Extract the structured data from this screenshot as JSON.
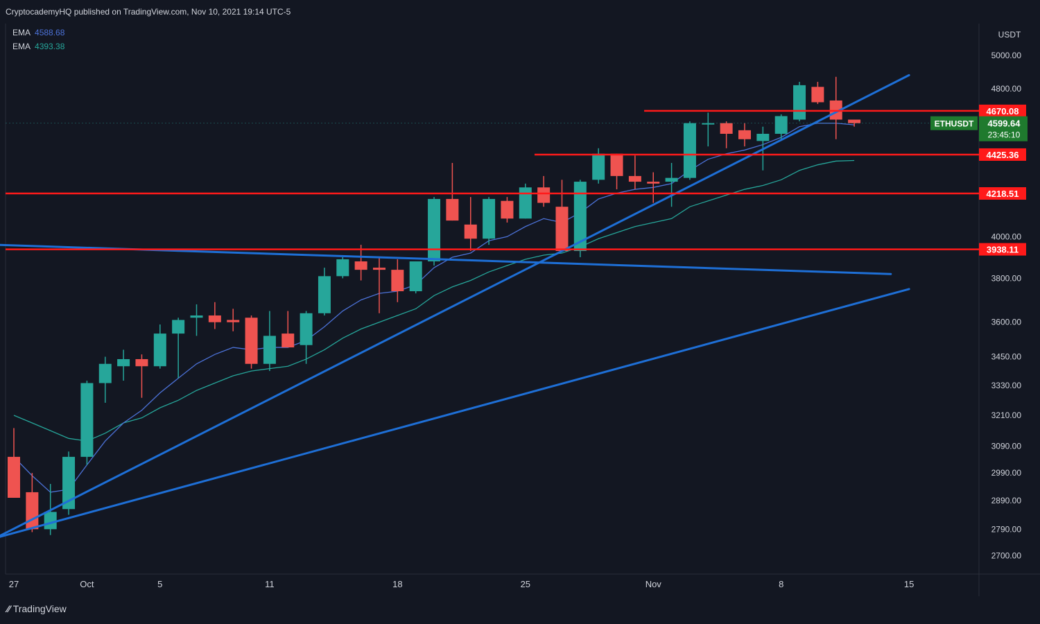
{
  "header": {
    "publisher": "CryptocademyHQ published on TradingView.com, Nov 10, 2021 19:14 UTC-5"
  },
  "footer": {
    "brand": "TradingView"
  },
  "legend": [
    {
      "label": "EMA",
      "value": "4588.68",
      "color": "#4c72d8"
    },
    {
      "label": "EMA",
      "value": "4393.38",
      "color": "#26a69a"
    }
  ],
  "chart_data": {
    "type": "candlestick",
    "symbol": "ETHUSDT",
    "currency_label": "USDT",
    "last_price": "4599.64",
    "countdown": "23:45:10",
    "colors": {
      "up": "#26a69a",
      "down": "#ef5350",
      "bg": "#131722",
      "trend": "#1e6fd6",
      "level": "#ff1a1a"
    },
    "y_scale": "log",
    "ylim": [
      2640,
      5200
    ],
    "y_ticks": [
      "5000.00",
      "4800.00",
      "4000.00",
      "3800.00",
      "3600.00",
      "3450.00",
      "3330.00",
      "3210.00",
      "3090.00",
      "2990.00",
      "2890.00",
      "2790.00",
      "2700.00"
    ],
    "x_ticks": [
      {
        "label": "27",
        "day": 0
      },
      {
        "label": "Oct",
        "day": 4
      },
      {
        "label": "5",
        "day": 8
      },
      {
        "label": "11",
        "day": 14
      },
      {
        "label": "18",
        "day": 21
      },
      {
        "label": "25",
        "day": 28
      },
      {
        "label": "Nov",
        "day": 35
      },
      {
        "label": "8",
        "day": 42
      },
      {
        "label": "15",
        "day": 49
      }
    ],
    "candles": [
      {
        "o": 3050,
        "h": 3160,
        "l": 2900,
        "c": 2900
      },
      {
        "o": 2920,
        "h": 2990,
        "l": 2780,
        "c": 2790
      },
      {
        "o": 2790,
        "h": 2950,
        "l": 2770,
        "c": 2850
      },
      {
        "o": 2860,
        "h": 3070,
        "l": 2840,
        "c": 3050
      },
      {
        "o": 3050,
        "h": 3350,
        "l": 3020,
        "c": 3340
      },
      {
        "o": 3340,
        "h": 3450,
        "l": 3260,
        "c": 3420
      },
      {
        "o": 3410,
        "h": 3480,
        "l": 3350,
        "c": 3440
      },
      {
        "o": 3440,
        "h": 3460,
        "l": 3280,
        "c": 3410
      },
      {
        "o": 3410,
        "h": 3590,
        "l": 3400,
        "c": 3550
      },
      {
        "o": 3550,
        "h": 3620,
        "l": 3360,
        "c": 3610
      },
      {
        "o": 3620,
        "h": 3680,
        "l": 3540,
        "c": 3630
      },
      {
        "o": 3630,
        "h": 3690,
        "l": 3570,
        "c": 3600
      },
      {
        "o": 3610,
        "h": 3660,
        "l": 3560,
        "c": 3600
      },
      {
        "o": 3620,
        "h": 3630,
        "l": 3400,
        "c": 3420
      },
      {
        "o": 3420,
        "h": 3650,
        "l": 3390,
        "c": 3540
      },
      {
        "o": 3550,
        "h": 3650,
        "l": 3490,
        "c": 3490
      },
      {
        "o": 3500,
        "h": 3650,
        "l": 3420,
        "c": 3640
      },
      {
        "o": 3640,
        "h": 3850,
        "l": 3630,
        "c": 3810
      },
      {
        "o": 3810,
        "h": 3900,
        "l": 3800,
        "c": 3890
      },
      {
        "o": 3880,
        "h": 3960,
        "l": 3790,
        "c": 3840
      },
      {
        "o": 3850,
        "h": 3900,
        "l": 3640,
        "c": 3840
      },
      {
        "o": 3840,
        "h": 3890,
        "l": 3690,
        "c": 3740
      },
      {
        "o": 3740,
        "h": 3880,
        "l": 3730,
        "c": 3880
      },
      {
        "o": 3880,
        "h": 4200,
        "l": 3860,
        "c": 4190
      },
      {
        "o": 4190,
        "h": 4380,
        "l": 4080,
        "c": 4080
      },
      {
        "o": 4060,
        "h": 4200,
        "l": 3930,
        "c": 3990
      },
      {
        "o": 3990,
        "h": 4200,
        "l": 3960,
        "c": 4190
      },
      {
        "o": 4180,
        "h": 4200,
        "l": 4070,
        "c": 4090
      },
      {
        "o": 4090,
        "h": 4270,
        "l": 4090,
        "c": 4250
      },
      {
        "o": 4250,
        "h": 4310,
        "l": 4150,
        "c": 4170
      },
      {
        "o": 4150,
        "h": 4290,
        "l": 3930,
        "c": 3930
      },
      {
        "o": 3930,
        "h": 4290,
        "l": 3900,
        "c": 4280
      },
      {
        "o": 4290,
        "h": 4460,
        "l": 4270,
        "c": 4430
      },
      {
        "o": 4430,
        "h": 4430,
        "l": 4240,
        "c": 4310
      },
      {
        "o": 4310,
        "h": 4420,
        "l": 4240,
        "c": 4280
      },
      {
        "o": 4280,
        "h": 4330,
        "l": 4170,
        "c": 4270
      },
      {
        "o": 4280,
        "h": 4380,
        "l": 4150,
        "c": 4300
      },
      {
        "o": 4300,
        "h": 4610,
        "l": 4290,
        "c": 4600
      },
      {
        "o": 4600,
        "h": 4660,
        "l": 4470,
        "c": 4600
      },
      {
        "o": 4600,
        "h": 4610,
        "l": 4460,
        "c": 4540
      },
      {
        "o": 4560,
        "h": 4600,
        "l": 4470,
        "c": 4510
      },
      {
        "o": 4500,
        "h": 4580,
        "l": 4340,
        "c": 4540
      },
      {
        "o": 4540,
        "h": 4650,
        "l": 4500,
        "c": 4640
      },
      {
        "o": 4620,
        "h": 4840,
        "l": 4610,
        "c": 4820
      },
      {
        "o": 4810,
        "h": 4840,
        "l": 4710,
        "c": 4720
      },
      {
        "o": 4730,
        "h": 4870,
        "l": 4510,
        "c": 4620
      },
      {
        "o": 4620,
        "h": 4620,
        "l": 4580,
        "c": 4600
      }
    ],
    "ema_fast": [
      3050,
      2980,
      2920,
      2930,
      3020,
      3110,
      3180,
      3230,
      3300,
      3360,
      3420,
      3460,
      3490,
      3480,
      3490,
      3490,
      3520,
      3580,
      3650,
      3700,
      3730,
      3740,
      3770,
      3850,
      3900,
      3920,
      3980,
      4000,
      4050,
      4090,
      4070,
      4120,
      4190,
      4220,
      4240,
      4250,
      4270,
      4340,
      4400,
      4430,
      4450,
      4480,
      4520,
      4580,
      4600,
      4600,
      4590
    ],
    "ema_slow": [
      3210,
      3180,
      3150,
      3120,
      3110,
      3140,
      3180,
      3200,
      3240,
      3270,
      3310,
      3340,
      3370,
      3390,
      3400,
      3410,
      3440,
      3480,
      3530,
      3570,
      3600,
      3630,
      3660,
      3720,
      3760,
      3790,
      3830,
      3860,
      3890,
      3910,
      3920,
      3950,
      3990,
      4020,
      4050,
      4070,
      4090,
      4150,
      4180,
      4210,
      4240,
      4260,
      4290,
      4340,
      4370,
      4390,
      4393
    ],
    "levels": [
      {
        "value": 4670.08,
        "label": "4670.08",
        "from_day": 34.5
      },
      {
        "value": 4425.36,
        "label": "4425.36",
        "from_day": 28.5
      },
      {
        "value": 4218.51,
        "label": "4218.51",
        "from_day": -1
      },
      {
        "value": 3938.11,
        "label": "3938.11",
        "from_day": -1
      }
    ],
    "trendlines": [
      {
        "from": {
          "day": -1,
          "price": 2760
        },
        "to": {
          "day": 49,
          "price": 4880
        }
      },
      {
        "from": {
          "day": -1,
          "price": 2760
        },
        "to": {
          "day": 49,
          "price": 3750
        }
      },
      {
        "from": {
          "day": -1,
          "price": 3960
        },
        "to": {
          "day": 48,
          "price": 3820
        }
      }
    ]
  }
}
